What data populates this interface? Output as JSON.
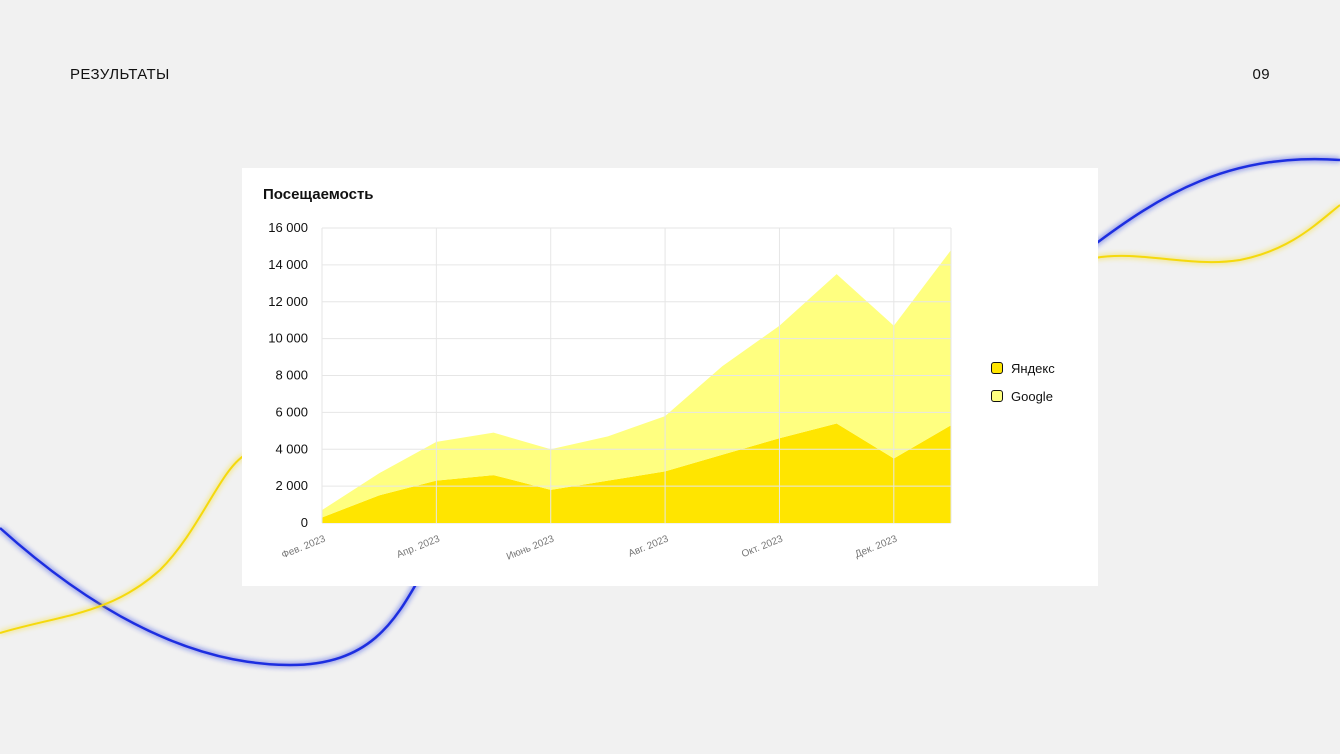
{
  "slide": {
    "title": "РЕЗУЛЬТАТЫ",
    "page_number": "09"
  },
  "colors": {
    "background": "#f1f1f1",
    "wave_blue": "#1f2ee0",
    "wave_yellow": "#f5d90a",
    "series_yandex": "#ffe500",
    "series_google": "#ffff80"
  },
  "chart_data": {
    "type": "area",
    "stacked": true,
    "title": "Посещаемость",
    "x": [
      "2023-02",
      "2023-03",
      "2023-04",
      "2023-05",
      "2023-06",
      "2023-07",
      "2023-08",
      "2023-09",
      "2023-10",
      "2023-11",
      "2023-12",
      "2024-01"
    ],
    "x_tick_labels": [
      {
        "at": "2023-02",
        "label": "Фев. 2023"
      },
      {
        "at": "2023-04",
        "label": "Апр. 2023"
      },
      {
        "at": "2023-06",
        "label": "Июнь 2023"
      },
      {
        "at": "2023-08",
        "label": "Авг. 2023"
      },
      {
        "at": "2023-10",
        "label": "Окт. 2023"
      },
      {
        "at": "2023-12",
        "label": "Дек. 2023"
      }
    ],
    "y_ticks": [
      0,
      2000,
      4000,
      6000,
      8000,
      10000,
      12000,
      14000,
      16000
    ],
    "y_tick_labels": [
      "0",
      "2 000",
      "4 000",
      "6 000",
      "8 000",
      "10 000",
      "12 000",
      "14 000",
      "16 000"
    ],
    "ylim": [
      0,
      16000
    ],
    "grid": true,
    "legend_position": "right",
    "series": [
      {
        "name": "Яндекс",
        "color": "#ffe500",
        "values": [
          300,
          1500,
          2300,
          2600,
          1800,
          2300,
          2800,
          3700,
          4600,
          5400,
          3500,
          5300
        ]
      },
      {
        "name": "Google",
        "color": "#ffff80",
        "values": [
          400,
          1200,
          2100,
          2300,
          2200,
          2400,
          3000,
          4800,
          6100,
          8100,
          7200,
          9500
        ]
      }
    ]
  }
}
